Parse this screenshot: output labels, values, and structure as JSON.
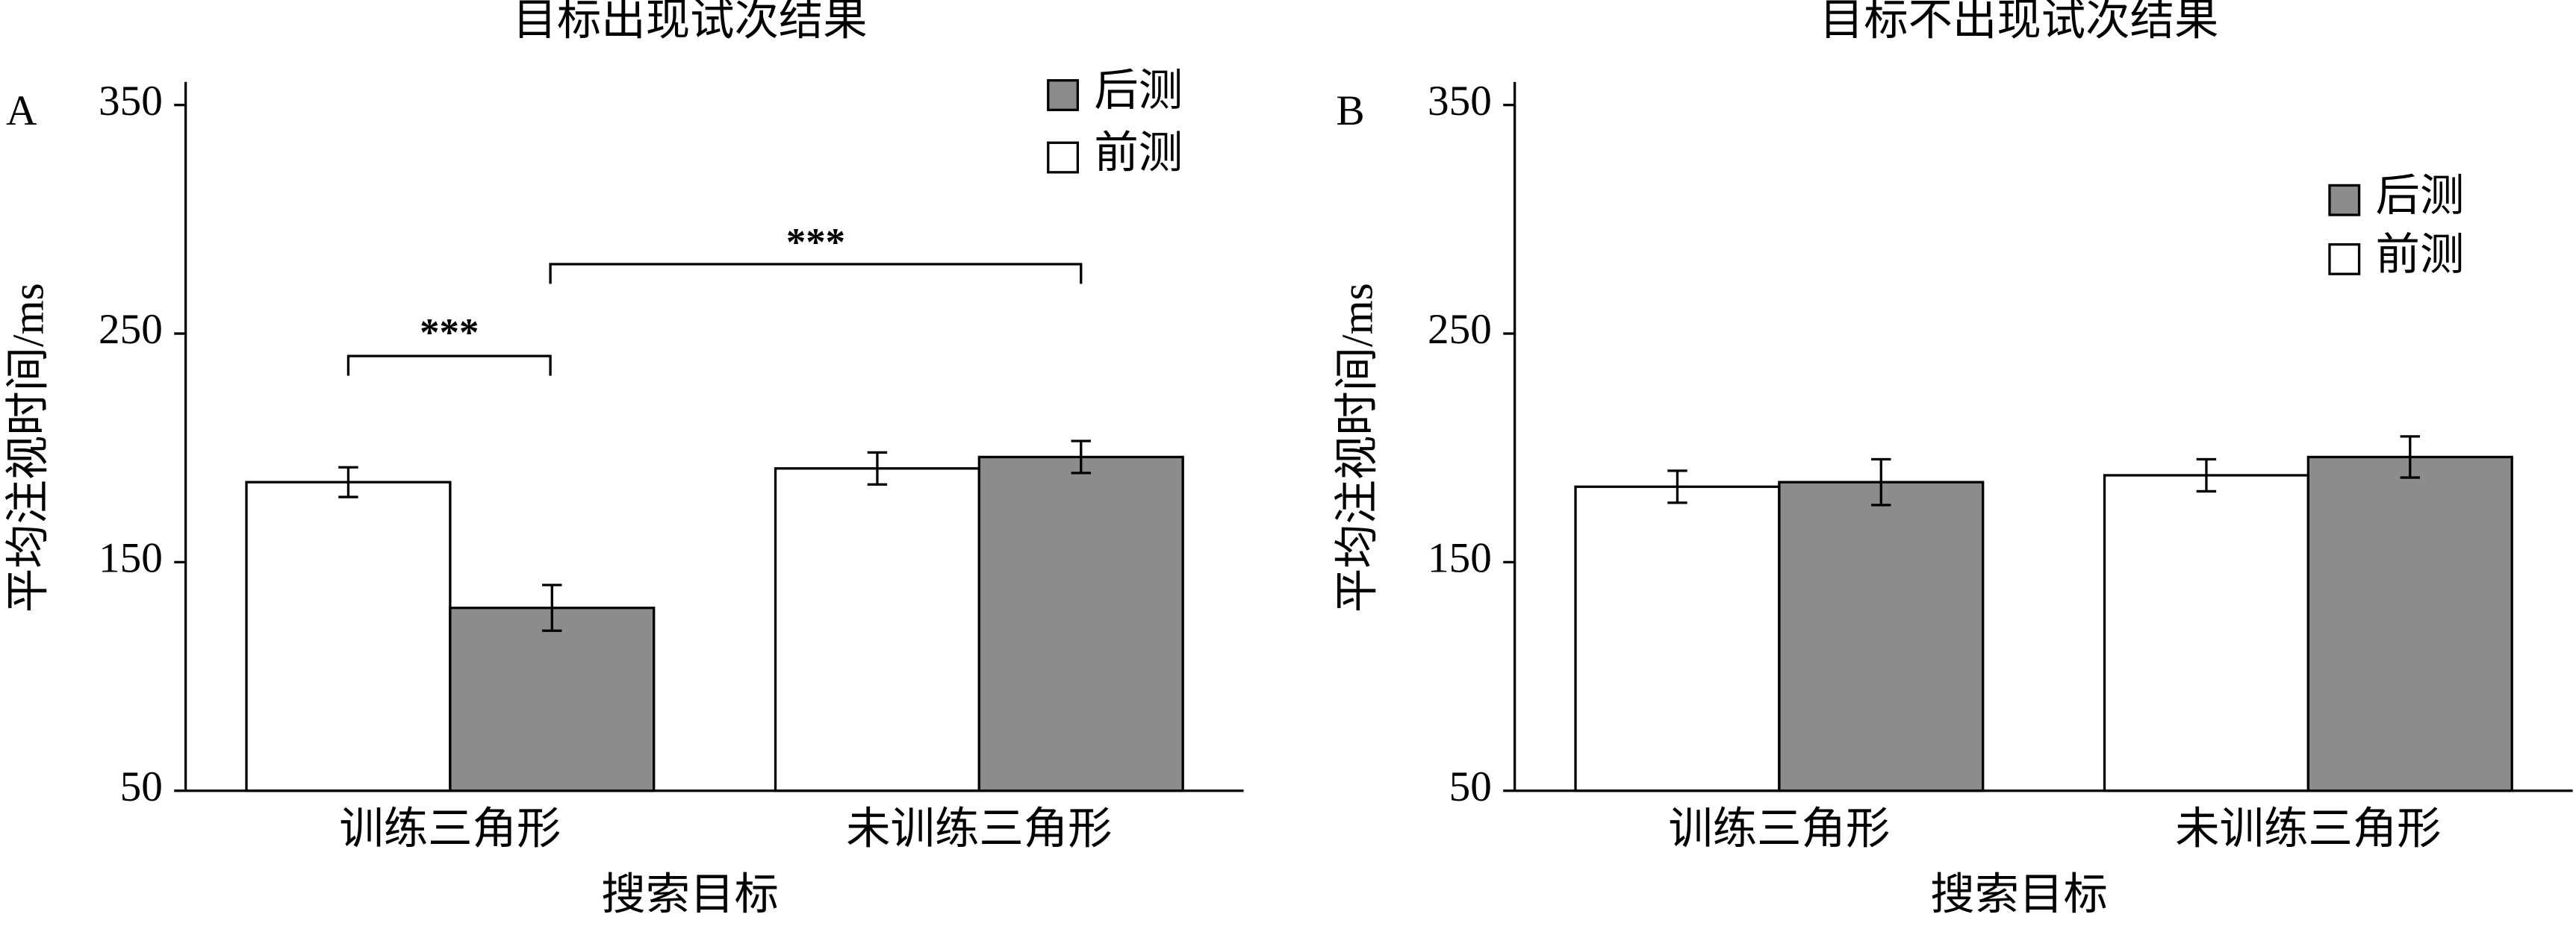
{
  "chart_data": [
    {
      "type": "bar",
      "panel_label": "A",
      "title": "目标出现试次结果",
      "y_label": "平均注视时间/ms",
      "x_label": "搜索目标",
      "categories": [
        "训练三角形",
        "未训练三角形"
      ],
      "series": [
        {
          "name": "前测",
          "color": "#ffffff",
          "values": [
            185,
            191
          ],
          "errors": [
            6.5,
            7
          ]
        },
        {
          "name": "后测",
          "color": "#8c8c8c",
          "values": [
            130,
            196
          ],
          "errors": [
            10,
            7
          ]
        }
      ],
      "ylim": [
        50,
        350
      ],
      "yticks": [
        50,
        150,
        250,
        350
      ],
      "annotations": [
        "***",
        "***"
      ]
    },
    {
      "type": "bar",
      "panel_label": "B",
      "title": "目标不出现试次结果",
      "y_label": "平均注视时间/ms",
      "x_label": "搜索目标",
      "categories": [
        "训练三角形",
        "未训练三角形"
      ],
      "series": [
        {
          "name": "前测",
          "color": "#ffffff",
          "values": [
            183,
            188
          ],
          "errors": [
            7,
            7
          ]
        },
        {
          "name": "后测",
          "color": "#8c8c8c",
          "values": [
            185,
            196
          ],
          "errors": [
            10,
            9
          ]
        }
      ],
      "ylim": [
        50,
        350
      ],
      "yticks": [
        50,
        150,
        250,
        350
      ]
    }
  ]
}
